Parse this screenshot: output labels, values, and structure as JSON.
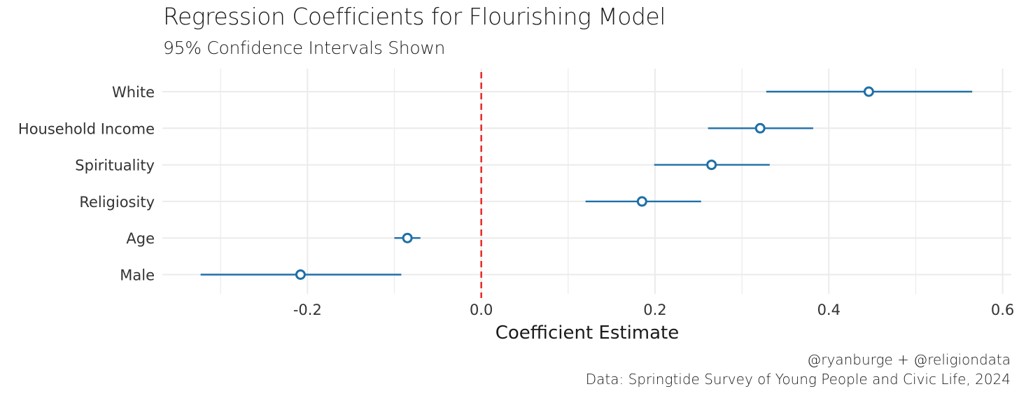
{
  "chart_data": {
    "type": "errorbar",
    "title": "Regression Coefficients for Flourishing Model",
    "subtitle": "95% Confidence Intervals Shown",
    "xlabel": "Coefficient Estimate",
    "ylabel": "",
    "xlim": [
      -0.367,
      0.61
    ],
    "x_ticks": [
      -0.2,
      0.0,
      0.2,
      0.4,
      0.6
    ],
    "x_tick_labels": [
      "-0.2",
      "0.0",
      "0.2",
      "0.4",
      "0.6"
    ],
    "categories": [
      "White",
      "Household Income",
      "Spirituality",
      "Religiosity",
      "Age",
      "Male"
    ],
    "estimates": [
      0.446,
      0.321,
      0.265,
      0.185,
      -0.085,
      -0.208
    ],
    "lower": [
      0.328,
      0.261,
      0.199,
      0.12,
      -0.1,
      -0.323
    ],
    "upper": [
      0.565,
      0.382,
      0.332,
      0.253,
      -0.07,
      -0.092
    ],
    "reference_line": 0.0,
    "grid": true,
    "colors": {
      "point": "#1f6fa8",
      "reference": "#e8201c",
      "grid": "#ebebeb"
    }
  },
  "caption": {
    "line1": "@ryanburge + @religiondata",
    "line2": "Data: Springtide Survey of Young People and Civic Life, 2024"
  }
}
